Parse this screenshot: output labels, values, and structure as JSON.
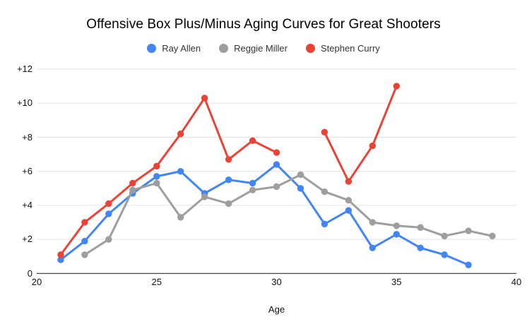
{
  "page": {
    "background_color": "#ffffff"
  },
  "chart_data": {
    "type": "line",
    "title": "Offensive Box Plus/Minus Aging Curves for Great Shooters",
    "xlabel": "Age",
    "ylabel": "",
    "xlim": [
      20,
      40
    ],
    "ylim": [
      0,
      12
    ],
    "grid": true,
    "legend_position": "top",
    "style": {
      "grid_color": "#e3e3e3",
      "axis_color": "#444444",
      "tick_text_color": "#111111",
      "legend_text_color": "#333333",
      "title_color": "#000000"
    },
    "x_ticks": [
      {
        "value": 20,
        "label": "20"
      },
      {
        "value": 25,
        "label": "25"
      },
      {
        "value": 30,
        "label": "30"
      },
      {
        "value": 35,
        "label": "35"
      },
      {
        "value": 40,
        "label": "40"
      }
    ],
    "y_ticks": [
      {
        "value": 0,
        "label": "0"
      },
      {
        "value": 2,
        "label": "+2"
      },
      {
        "value": 4,
        "label": "+4"
      },
      {
        "value": 6,
        "label": "+6"
      },
      {
        "value": 8,
        "label": "+8"
      },
      {
        "value": 10,
        "label": "+10"
      },
      {
        "value": 12,
        "label": "+12"
      }
    ],
    "series": [
      {
        "name": "Ray Allen",
        "color": "#4285F4",
        "points": [
          [
            21,
            0.8
          ],
          [
            22,
            1.9
          ],
          [
            23,
            3.5
          ],
          [
            24,
            4.7
          ],
          [
            25,
            5.7
          ],
          [
            26,
            6.0
          ],
          [
            27,
            4.7
          ],
          [
            28,
            5.5
          ],
          [
            29,
            5.3
          ],
          [
            30,
            6.4
          ],
          [
            31,
            5.0
          ],
          [
            32,
            2.9
          ],
          [
            33,
            3.7
          ],
          [
            34,
            1.5
          ],
          [
            35,
            2.3
          ],
          [
            36,
            1.5
          ],
          [
            37,
            1.1
          ],
          [
            38,
            0.5
          ]
        ]
      },
      {
        "name": "Reggie Miller",
        "color": "#9E9E9E",
        "points": [
          [
            22,
            1.1
          ],
          [
            23,
            2.0
          ],
          [
            24,
            4.9
          ],
          [
            25,
            5.3
          ],
          [
            26,
            3.3
          ],
          [
            27,
            4.5
          ],
          [
            28,
            4.1
          ],
          [
            29,
            4.9
          ],
          [
            30,
            5.1
          ],
          [
            31,
            5.8
          ],
          [
            32,
            4.8
          ],
          [
            33,
            4.3
          ],
          [
            34,
            3.0
          ],
          [
            35,
            2.8
          ],
          [
            36,
            2.7
          ],
          [
            37,
            2.2
          ],
          [
            38,
            2.5
          ],
          [
            39,
            2.2
          ]
        ]
      },
      {
        "name": "Stephen Curry",
        "color": "#EA4335",
        "points": [
          [
            21,
            1.1
          ],
          [
            22,
            3.0
          ],
          [
            23,
            4.1
          ],
          [
            24,
            5.3
          ],
          [
            25,
            6.3
          ],
          [
            26,
            8.2
          ],
          [
            27,
            10.3
          ],
          [
            28,
            6.7
          ],
          [
            29,
            7.8
          ],
          [
            30,
            7.1
          ],
          [
            32,
            8.3
          ],
          [
            33,
            5.4
          ],
          [
            34,
            7.5
          ],
          [
            35,
            11.0
          ]
        ]
      }
    ]
  }
}
